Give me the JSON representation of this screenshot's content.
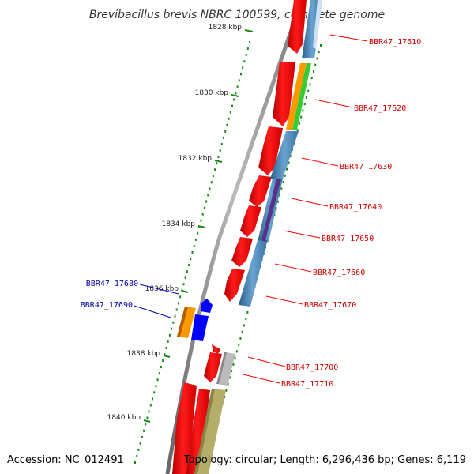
{
  "title": "Brevibacillus brevis NBRC 100599, complete genome",
  "footer": {
    "accession": "Accession: NC_012491",
    "topology": "Topology: circular; Length: 6,296,436 bp; Genes: 6,119"
  },
  "ticks": [
    "1828 kbp",
    "1830 kbp",
    "1832 kbp",
    "1834 kbp",
    "1836 kbp",
    "1838 kbp",
    "1840 kbp"
  ],
  "colors": {
    "backbone": "#888888",
    "tick": "#1a8a1a",
    "forward_cds": "#ff0000",
    "reverse_label": "#0000aa",
    "label_forward": "#cc0000",
    "steelblue": "#4682b4",
    "orange": "#ff9900",
    "green": "#33cc33",
    "purple": "#553388",
    "blue": "#0000ff",
    "grey": "#bbbbbb",
    "khaki": "#b5ad6a"
  },
  "genes_right": [
    {
      "label": "BBR47_17610",
      "color": "#cc0000"
    },
    {
      "label": "BBR47_17620",
      "color": "#cc0000"
    },
    {
      "label": "BBR47_17630",
      "color": "#cc0000"
    },
    {
      "label": "BBR47_17640",
      "color": "#cc0000"
    },
    {
      "label": "BBR47_17650",
      "color": "#cc0000"
    },
    {
      "label": "BBR47_17660",
      "color": "#cc0000"
    },
    {
      "label": "BBR47_17670",
      "color": "#cc0000"
    },
    {
      "label": "BBR47_17700",
      "color": "#cc0000"
    },
    {
      "label": "BBR47_17710",
      "color": "#cc0000"
    }
  ],
  "genes_left": [
    {
      "label": "BBR47_17680",
      "color": "#0000aa"
    },
    {
      "label": "BBR47_17690",
      "color": "#0000aa"
    }
  ]
}
